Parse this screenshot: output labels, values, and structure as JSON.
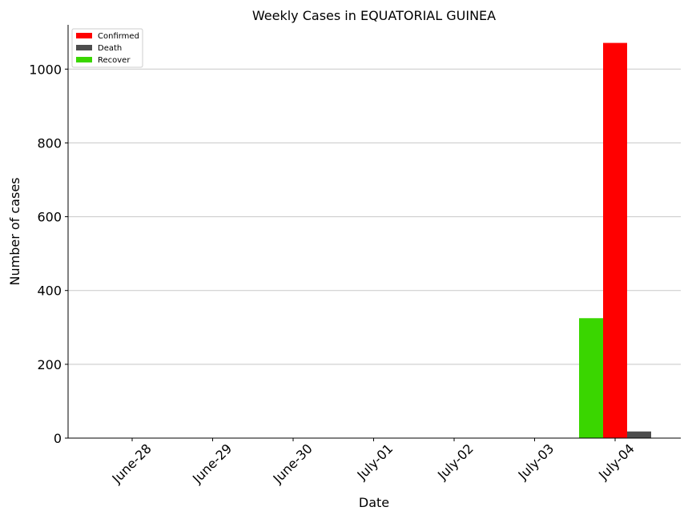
{
  "chart_data": {
    "type": "bar",
    "title": "Weekly Cases in EQUATORIAL GUINEA",
    "xlabel": "Date",
    "ylabel": "Number of cases",
    "categories": [
      "June-28",
      "June-29",
      "June-30",
      "July-01",
      "July-02",
      "July-03",
      "July-04"
    ],
    "ylim": [
      0,
      1120
    ],
    "yticks": [
      0,
      200,
      400,
      600,
      800,
      1000
    ],
    "grid": "horizontal",
    "legend_position": "top-left",
    "series": [
      {
        "name": "Confirmed",
        "color": "#ff0000",
        "values": [
          0,
          0,
          0,
          0,
          0,
          0,
          1071
        ]
      },
      {
        "name": "Death",
        "color": "#4d4d4d",
        "values": [
          0,
          0,
          0,
          0,
          0,
          0,
          18
        ]
      },
      {
        "name": "Recover",
        "color": "#3ad600",
        "values": [
          0,
          0,
          0,
          0,
          0,
          0,
          325
        ]
      }
    ]
  }
}
